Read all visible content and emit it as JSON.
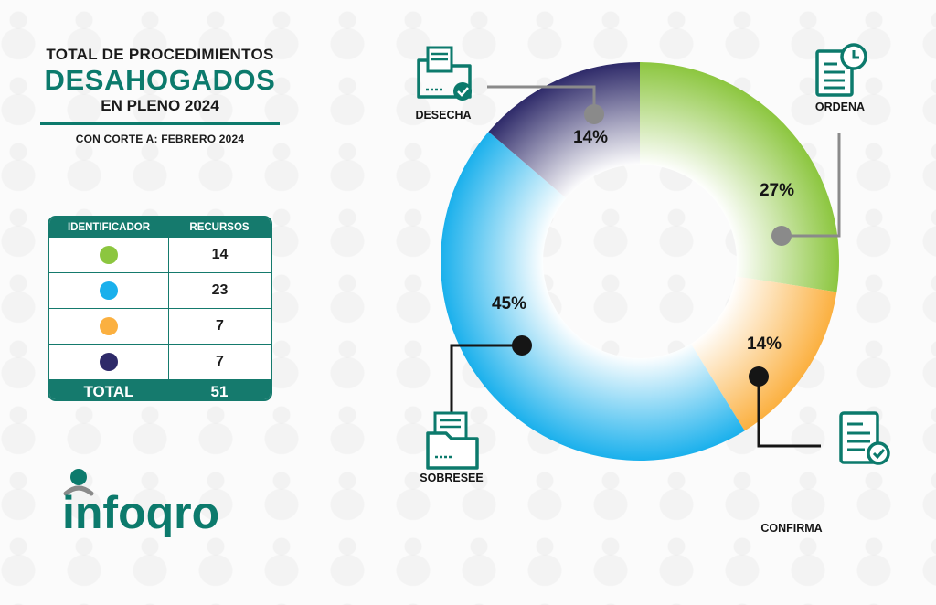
{
  "title": {
    "line1": "TOTAL DE PROCEDIMIENTOS",
    "line2": "DESAHOGADOS",
    "line3": "EN PLENO 2024",
    "cutoff": "CON CORTE A: FEBRERO 2024"
  },
  "table": {
    "headers": [
      "IDENTIFICADOR",
      "RECURSOS"
    ],
    "rows": [
      {
        "color": "#8cc63f",
        "value": "14"
      },
      {
        "color": "#1ab0ec",
        "value": "23"
      },
      {
        "color": "#fbb040",
        "value": "7"
      },
      {
        "color": "#2e2a69",
        "value": "7"
      }
    ],
    "total_label": "TOTAL",
    "total_value": "51"
  },
  "logo": {
    "text": "infoqro"
  },
  "colors": {
    "accent": "#0c7a6c",
    "text": "#151515"
  },
  "chart_data": {
    "type": "pie",
    "donut": true,
    "categories": [
      "ORDENA",
      "CONFIRMA",
      "SOBRESEE",
      "DESECHA"
    ],
    "values": [
      14,
      7,
      23,
      7
    ],
    "percent_labels": [
      "27%",
      "14%",
      "45%",
      "14%"
    ],
    "colors": [
      "#8cc63f",
      "#fbb040",
      "#1ab0ec",
      "#2e2a69"
    ],
    "icons": [
      "document-clock-icon",
      "document-check-icon",
      "folder-documents-icon",
      "folder-check-icon"
    ]
  }
}
